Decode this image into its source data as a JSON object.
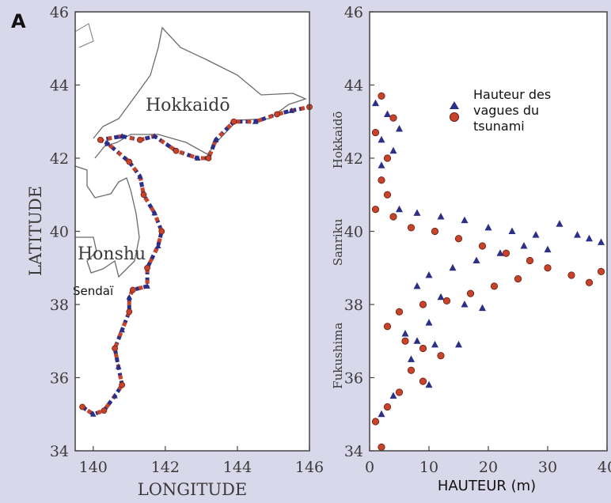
{
  "panel_letter": "A",
  "colors": {
    "background": "#d9d8ea",
    "plot_bg": "#ffffff",
    "blue_triangle": "#2c2f86",
    "red_circle": "#c7442b",
    "coastline": "#555555"
  },
  "chart_data": [
    {
      "type": "scatter",
      "title": "",
      "xlabel": "LONGITUDE",
      "ylabel": "LATITUDE",
      "xlim": [
        139.5,
        146
      ],
      "ylim": [
        34,
        46
      ],
      "xticks": [
        "140",
        "142",
        "144",
        "146"
      ],
      "yticks": [
        "34",
        "36",
        "38",
        "40",
        "42",
        "44",
        "46"
      ],
      "map_labels": [
        "Hokkaidō",
        "Honshu",
        "Sendaï"
      ],
      "coast_observations": [
        [
          139.7,
          35.2
        ],
        [
          140.0,
          35.0
        ],
        [
          140.3,
          35.1
        ],
        [
          140.6,
          35.5
        ],
        [
          140.8,
          35.8
        ],
        [
          140.7,
          36.3
        ],
        [
          140.6,
          36.8
        ],
        [
          140.8,
          37.3
        ],
        [
          141.0,
          37.8
        ],
        [
          141.0,
          38.2
        ],
        [
          141.1,
          38.4
        ],
        [
          141.5,
          38.5
        ],
        [
          141.5,
          39.0
        ],
        [
          141.8,
          39.6
        ],
        [
          141.9,
          40.0
        ],
        [
          141.7,
          40.5
        ],
        [
          141.4,
          41.0
        ],
        [
          141.3,
          41.5
        ],
        [
          141.0,
          41.9
        ],
        [
          140.4,
          42.4
        ],
        [
          140.2,
          42.5
        ],
        [
          140.8,
          42.6
        ],
        [
          141.3,
          42.5
        ],
        [
          141.7,
          42.6
        ],
        [
          142.3,
          42.2
        ],
        [
          142.9,
          42.0
        ],
        [
          143.2,
          42.0
        ],
        [
          143.4,
          42.5
        ],
        [
          143.9,
          43.0
        ],
        [
          144.5,
          43.0
        ],
        [
          145.1,
          43.2
        ],
        [
          145.5,
          43.3
        ],
        [
          146.0,
          43.4
        ]
      ]
    },
    {
      "type": "scatter",
      "title": "",
      "xlabel": "HAUTEUR (m)",
      "ylabel": "",
      "xlim": [
        0,
        40
      ],
      "ylim": [
        34,
        46
      ],
      "xticks": [
        "0",
        "10",
        "20",
        "30",
        "40"
      ],
      "yticks": [
        "34",
        "36",
        "38",
        "40",
        "42",
        "44",
        "46"
      ],
      "regions": [
        {
          "name": "Hokkaidō",
          "lat": 42.5
        },
        {
          "name": "Sanriku",
          "lat": 39.7
        },
        {
          "name": "Fukushima",
          "lat": 36.6
        }
      ],
      "legend": {
        "label": "Hauteur des vagues du tsunami",
        "position": "top-right"
      },
      "series": [
        {
          "marker": "triangle",
          "points": [
            [
              1,
              43.5
            ],
            [
              3,
              43.2
            ],
            [
              5,
              42.8
            ],
            [
              2,
              42.5
            ],
            [
              4,
              42.2
            ],
            [
              2,
              41.8
            ],
            [
              5,
              40.6
            ],
            [
              8,
              40.5
            ],
            [
              12,
              40.4
            ],
            [
              16,
              40.3
            ],
            [
              20,
              40.1
            ],
            [
              24,
              40.0
            ],
            [
              28,
              39.9
            ],
            [
              32,
              40.2
            ],
            [
              35,
              39.9
            ],
            [
              37,
              39.8
            ],
            [
              39,
              39.7
            ],
            [
              30,
              39.5
            ],
            [
              26,
              39.6
            ],
            [
              22,
              39.4
            ],
            [
              18,
              39.2
            ],
            [
              14,
              39.0
            ],
            [
              10,
              38.8
            ],
            [
              8,
              38.5
            ],
            [
              12,
              38.2
            ],
            [
              16,
              38.0
            ],
            [
              19,
              37.9
            ],
            [
              10,
              37.5
            ],
            [
              6,
              37.2
            ],
            [
              8,
              37.0
            ],
            [
              11,
              36.9
            ],
            [
              15,
              36.9
            ],
            [
              7,
              36.5
            ],
            [
              10,
              35.8
            ],
            [
              4,
              35.5
            ],
            [
              2,
              35.0
            ]
          ]
        },
        {
          "marker": "circle",
          "points": [
            [
              2,
              43.7
            ],
            [
              4,
              43.1
            ],
            [
              1,
              42.7
            ],
            [
              3,
              42.0
            ],
            [
              2,
              41.4
            ],
            [
              3,
              41.0
            ],
            [
              1,
              40.6
            ],
            [
              4,
              40.4
            ],
            [
              7,
              40.1
            ],
            [
              11,
              40.0
            ],
            [
              15,
              39.8
            ],
            [
              19,
              39.6
            ],
            [
              23,
              39.4
            ],
            [
              27,
              39.2
            ],
            [
              30,
              39.0
            ],
            [
              34,
              38.8
            ],
            [
              37,
              38.6
            ],
            [
              39,
              38.9
            ],
            [
              25,
              38.7
            ],
            [
              21,
              38.5
            ],
            [
              17,
              38.3
            ],
            [
              13,
              38.1
            ],
            [
              9,
              38.0
            ],
            [
              5,
              37.8
            ],
            [
              3,
              37.4
            ],
            [
              6,
              37.0
            ],
            [
              9,
              36.8
            ],
            [
              12,
              36.6
            ],
            [
              7,
              36.2
            ],
            [
              9,
              35.9
            ],
            [
              5,
              35.6
            ],
            [
              3,
              35.2
            ],
            [
              1,
              34.8
            ],
            [
              2,
              34.1
            ]
          ]
        }
      ]
    }
  ]
}
